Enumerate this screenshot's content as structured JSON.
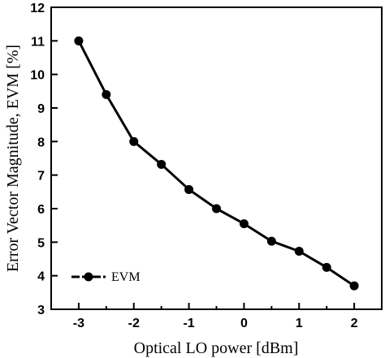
{
  "chart_data": {
    "type": "line",
    "title": "",
    "xlabel": "Optical LO power [dBm]",
    "ylabel": "Error Vector Magnitude, EVM [%]",
    "xlim": [
      -3.5,
      2.5
    ],
    "ylim": [
      3,
      12
    ],
    "xticks": [
      -3,
      -2,
      -1,
      0,
      1,
      2
    ],
    "yticks": [
      3,
      4,
      5,
      6,
      7,
      8,
      9,
      10,
      11,
      12
    ],
    "x_minor_ticks": [
      -2.5,
      -1.5,
      -0.5,
      0.5,
      1.5
    ],
    "grid": false,
    "legend_position": "bottom-left",
    "series": [
      {
        "name": "EVM",
        "color": "#000000",
        "marker": "circle",
        "x": [
          -3,
          -2.5,
          -2,
          -1.5,
          -1,
          -0.5,
          0,
          0.5,
          1,
          1.5,
          2
        ],
        "y": [
          11.0,
          9.4,
          8.0,
          7.32,
          6.57,
          6.0,
          5.55,
          5.03,
          4.73,
          4.25,
          3.7
        ]
      }
    ]
  }
}
